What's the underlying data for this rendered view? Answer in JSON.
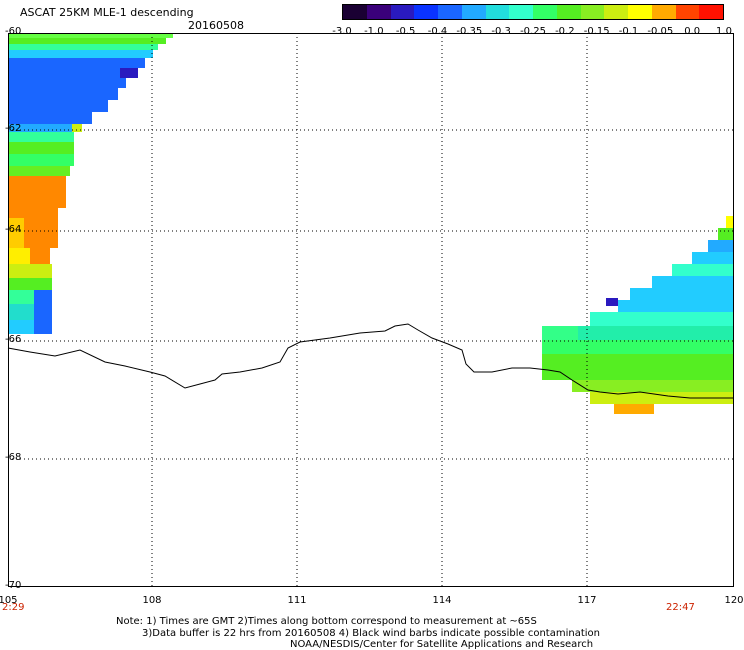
{
  "header": {
    "title": "ASCAT 25KM MLE-1 descending",
    "date": "20160508"
  },
  "colorbar": {
    "colors": [
      "#1a0033",
      "#3a007a",
      "#2a1abf",
      "#0a33ff",
      "#1a66ff",
      "#22aaff",
      "#22dddd",
      "#33ffcc",
      "#33ff66",
      "#55ee22",
      "#88ee22",
      "#ccee11",
      "#ffff00",
      "#ffaa00",
      "#ff4400",
      "#ff1100"
    ],
    "tick_labels": [
      "-3.0",
      "-1.0",
      "-0.5",
      "-0.4",
      "-0.35",
      "-0.3",
      "-0.25",
      "-0.2",
      "-0.15",
      "-0.1",
      "-0.05",
      "0.0",
      "1.0"
    ]
  },
  "axes": {
    "lat_labels": [
      "-60",
      "-62",
      "-64",
      "-66",
      "-68",
      "-70"
    ],
    "lon_labels": [
      "105",
      "108",
      "111",
      "114",
      "117",
      "120"
    ],
    "time_start": "2:29",
    "time_end": "22:47"
  },
  "notes": {
    "line1": "Note: 1) Times are GMT 2)Times along bottom correspond to measurement at ~65S",
    "line2": "3)Data buffer is 22 hrs from 20160508 4) Black wind barbs indicate possible contamination",
    "line3": "NOAA/NESDIS/Center for Satellite Applications and Research"
  }
}
